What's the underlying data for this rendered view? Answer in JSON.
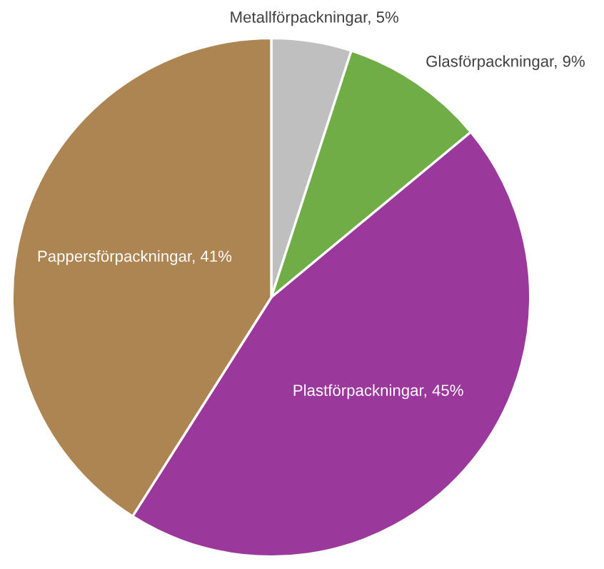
{
  "chart_data": {
    "type": "pie",
    "categories": [
      "Metallförpackningar",
      "Glasförpackningar",
      "Plastförpackningar",
      "Pappersförpackningar"
    ],
    "values": [
      5,
      9,
      45,
      41
    ],
    "value_labels": [
      "5%",
      "9%",
      "45%",
      "41%"
    ],
    "colors": [
      "#bfbfbf",
      "#70ad47",
      "#9a399b",
      "#ad8553"
    ]
  }
}
